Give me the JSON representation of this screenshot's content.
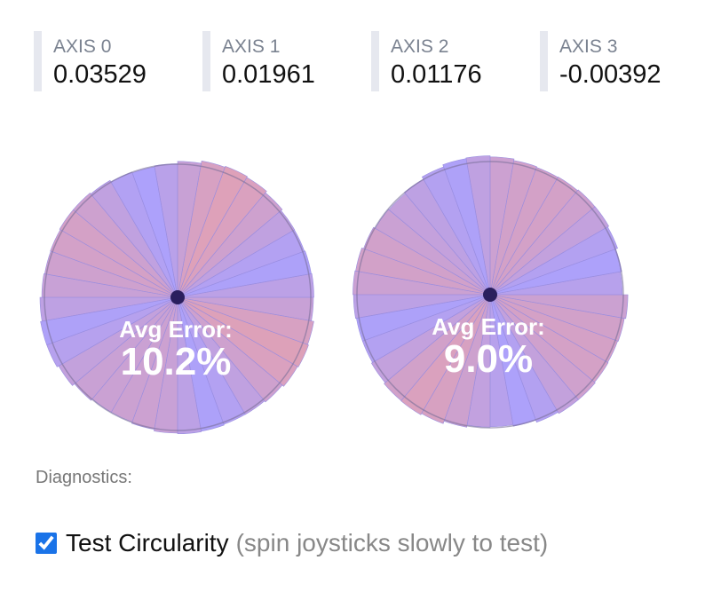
{
  "axes": [
    {
      "label": "AXIS 0",
      "value": "0.03529"
    },
    {
      "label": "AXIS 1",
      "value": "0.01961"
    },
    {
      "label": "AXIS 2",
      "value": "0.01176"
    },
    {
      "label": "AXIS 3",
      "value": "-0.00392"
    }
  ],
  "circularity": [
    {
      "label": "Avg Error:",
      "value": "10.2%"
    },
    {
      "label": "Avg Error:",
      "value": "9.0%"
    }
  ],
  "diagnostics": "Diagnostics:",
  "test": {
    "label": "Test Circularity",
    "hint": "(spin joysticks slowly to test)"
  }
}
